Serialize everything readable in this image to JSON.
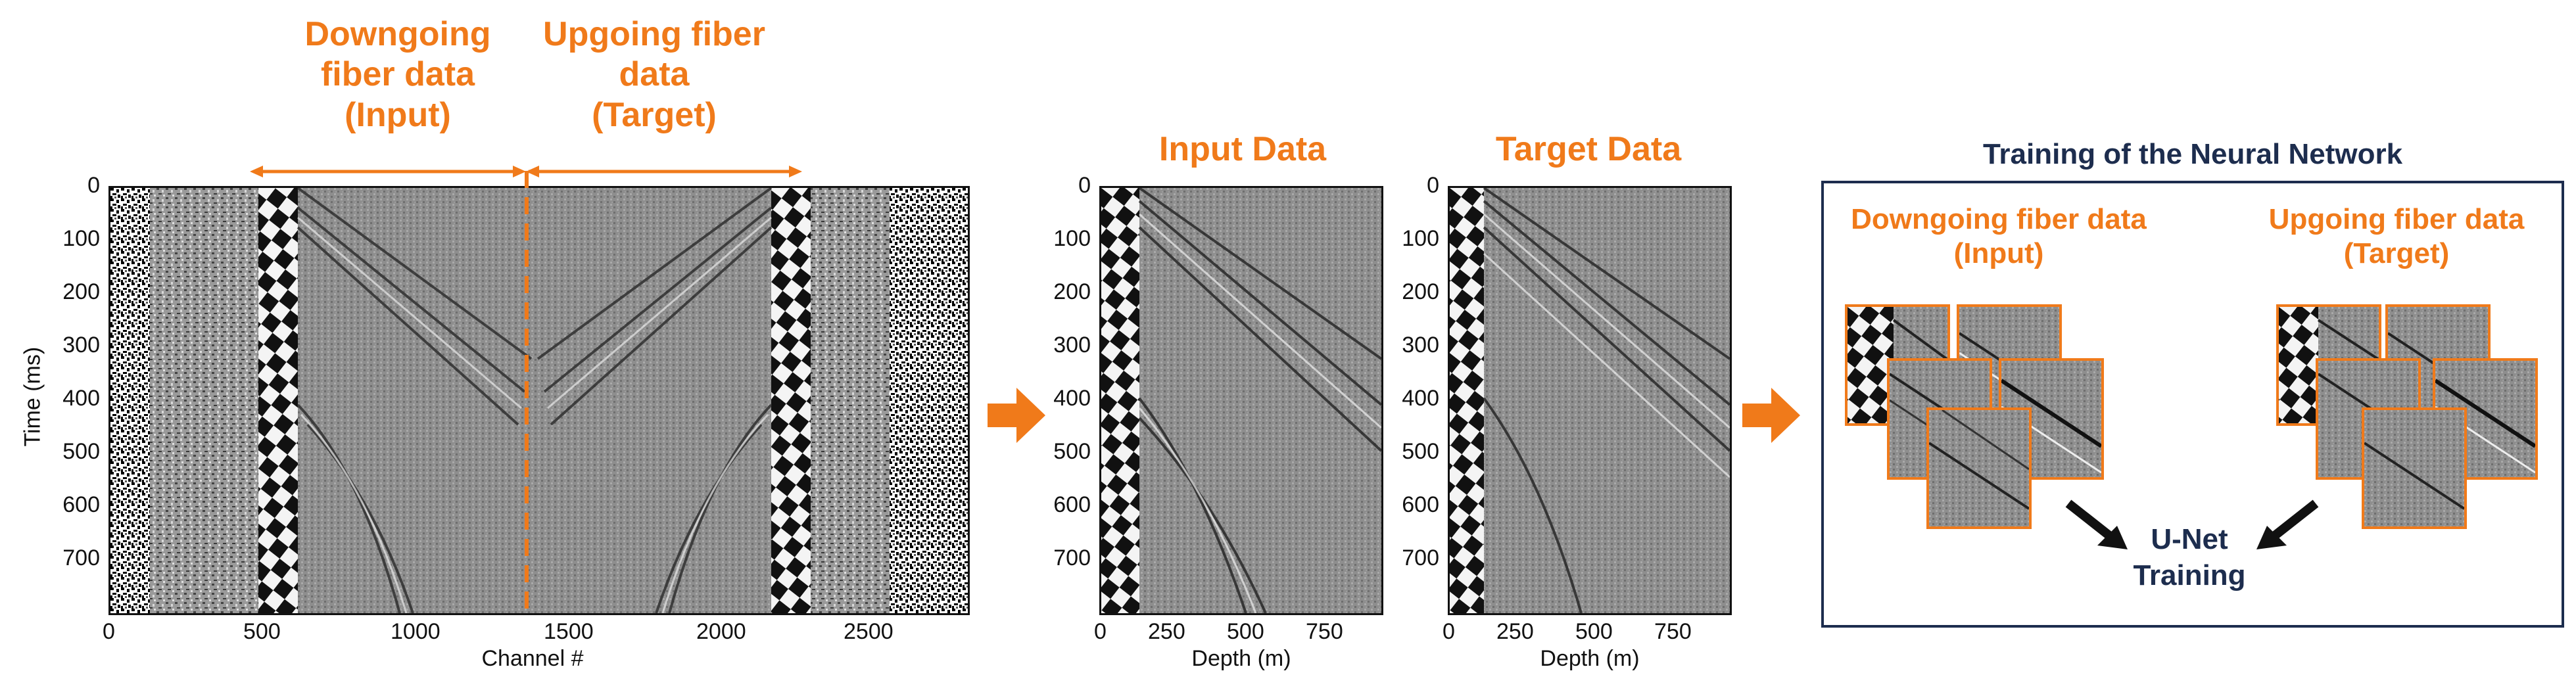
{
  "colors": {
    "accent_orange": "#f07a1a",
    "navy": "#1d2d4e",
    "seismic_mid": "#8c8c8c"
  },
  "main_plot": {
    "segment_left_title": [
      "Downgoing",
      "fiber data",
      "(Input)"
    ],
    "segment_right_title": [
      "Upgoing fiber",
      "data",
      "(Target)"
    ],
    "y_label": "Time (ms)",
    "x_label": "Channel #",
    "y_ticks": [
      "0",
      "100",
      "200",
      "300",
      "400",
      "500",
      "600",
      "700"
    ],
    "x_ticks": [
      "0",
      "500",
      "1000",
      "1500",
      "2000",
      "2500"
    ]
  },
  "input_plot": {
    "title": "Input Data",
    "x_label": "Depth (m)",
    "y_ticks": [
      "0",
      "100",
      "200",
      "300",
      "400",
      "500",
      "600",
      "700"
    ],
    "x_ticks": [
      "0",
      "250",
      "500",
      "750"
    ]
  },
  "target_plot": {
    "title": "Target Data",
    "x_label": "Depth (m)",
    "y_ticks": [
      "0",
      "100",
      "200",
      "300",
      "400",
      "500",
      "600",
      "700"
    ],
    "x_ticks": [
      "0",
      "250",
      "500",
      "750"
    ]
  },
  "training": {
    "title": "Training of the Neural Network",
    "left_label": [
      "Downgoing fiber data",
      "(Input)"
    ],
    "right_label": [
      "Upgoing fiber data",
      "(Target)"
    ],
    "unet_label": [
      "U-Net",
      "Training"
    ]
  },
  "icons": {
    "flow_arrow": "orange-right-arrow",
    "pointer_arrow": "black-diagonal-arrow"
  }
}
